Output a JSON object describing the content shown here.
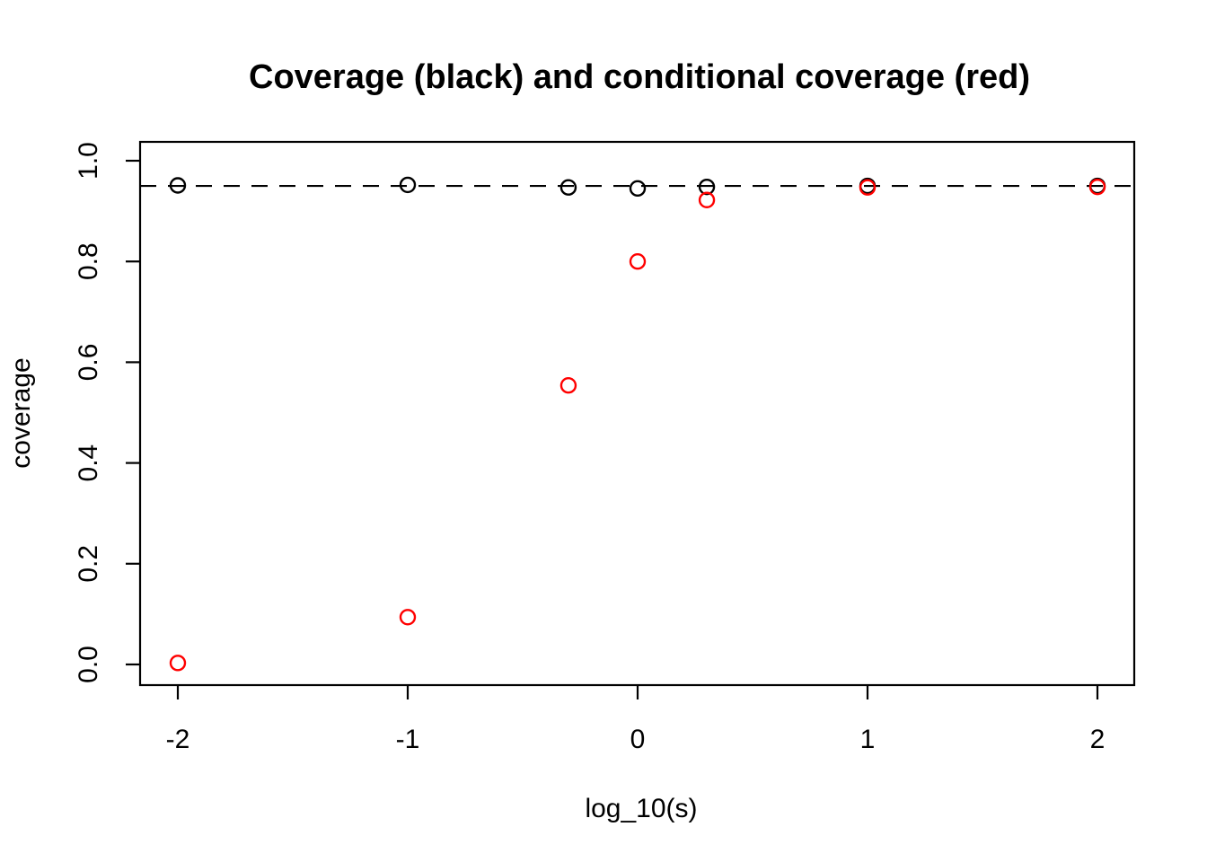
{
  "chart_data": {
    "type": "scatter",
    "title": "Coverage (black) and conditional coverage (red)",
    "xlabel": "log_10(s)",
    "ylabel": "coverage",
    "x_tick_values": [
      -2,
      -1,
      0,
      1,
      2
    ],
    "x_tick_labels": [
      "-2",
      "-1",
      "0",
      "1",
      "2"
    ],
    "y_tick_values": [
      0.0,
      0.2,
      0.4,
      0.6,
      0.8,
      1.0
    ],
    "y_tick_labels": [
      "0.0",
      "0.2",
      "0.4",
      "0.6",
      "0.8",
      "1.0"
    ],
    "xlim": [
      -2.16,
      2.16
    ],
    "ylim": [
      -0.042,
      1.038
    ],
    "grid": "off",
    "legend": "none",
    "marker": "open-circle",
    "x": [
      -2,
      -1,
      -0.301,
      0,
      0.301,
      1,
      2
    ],
    "series": [
      {
        "name": "coverage (black)",
        "color": "#000000",
        "values": [
          0.951,
          0.952,
          0.947,
          0.945,
          0.948,
          0.95,
          0.95
        ]
      },
      {
        "name": "conditional coverage (red)",
        "color": "#ff0000",
        "values": [
          0.003,
          0.094,
          0.554,
          0.8,
          0.922,
          0.947,
          0.948
        ]
      }
    ],
    "reference_line": {
      "y": 0.95,
      "style": "dashed",
      "color": "#000000"
    }
  }
}
